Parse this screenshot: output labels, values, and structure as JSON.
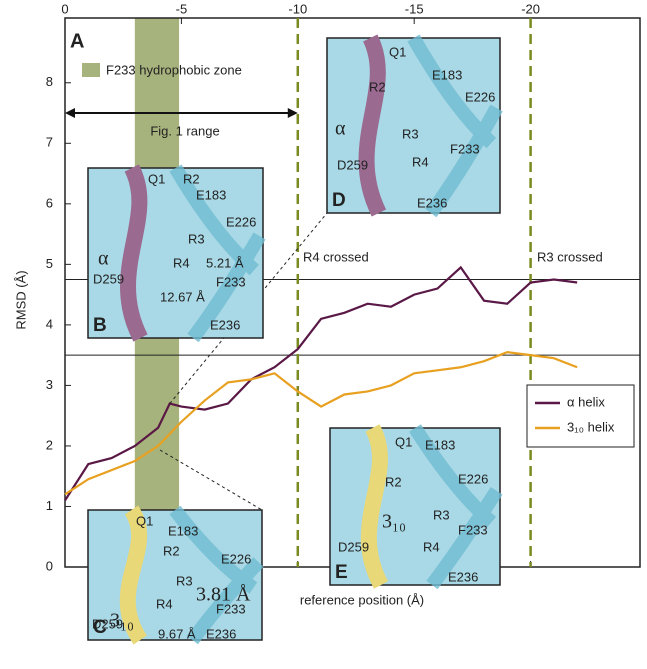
{
  "chart_data": {
    "type": "line",
    "panel_label": "A",
    "x_label": "reference position (Å)",
    "y_label": "RMSD (Å)",
    "x": [
      0,
      -1,
      -2,
      -3,
      -4,
      -4.5,
      -5,
      -6,
      -7,
      -8,
      -9,
      -10,
      -11,
      -12,
      -13,
      -14,
      -15,
      -16,
      -17,
      -18,
      -19,
      -20,
      -21,
      -22
    ],
    "series": [
      {
        "name": "α helix",
        "color": "#5a1846",
        "values": [
          1.1,
          1.7,
          1.8,
          2.0,
          2.3,
          2.7,
          2.65,
          2.6,
          2.7,
          3.1,
          3.3,
          3.6,
          4.1,
          4.2,
          4.35,
          4.3,
          4.5,
          4.6,
          4.95,
          4.4,
          4.35,
          4.7,
          4.75,
          4.7
        ]
      },
      {
        "name": "3₁₀ helix",
        "color": "#e8a020",
        "values": [
          1.2,
          1.45,
          1.6,
          1.75,
          2.0,
          2.2,
          2.4,
          2.75,
          3.05,
          3.1,
          3.2,
          2.9,
          2.65,
          2.85,
          2.9,
          3.0,
          3.2,
          3.25,
          3.3,
          3.4,
          3.55,
          3.5,
          3.45,
          3.3
        ]
      }
    ],
    "xlim": [
      0,
      -24.7
    ],
    "ylim": [
      0,
      9.07
    ],
    "xticks": [
      0,
      -5,
      -10,
      -15,
      -20
    ],
    "yticks": [
      0,
      1,
      2,
      3,
      4,
      5,
      6,
      7,
      8
    ],
    "hlines": [
      4.75,
      3.5
    ],
    "vlines": [
      -10,
      -20
    ],
    "zone": {
      "label": "F233 hydrophobic zone",
      "range": [
        -3,
        -4.9
      ],
      "color": "#8a9a50"
    },
    "range_arrow": {
      "label": "Fig. 1 range",
      "range": [
        0,
        -10
      ],
      "y": 7.5
    },
    "annotations": [
      "R4 crossed",
      "R3 crossed"
    ],
    "legend": "lower right",
    "insets": [
      {
        "panel": "B",
        "labels": [
          "Q1",
          "R2",
          "E183",
          "E226",
          "R3",
          "α",
          "R4",
          "5.21 Å",
          "D259",
          "12.67 Å",
          "F233",
          "E236"
        ]
      },
      {
        "panel": "D",
        "labels": [
          "Q1",
          "E183",
          "R2",
          "E226",
          "R3",
          "α",
          "D259",
          "R4",
          "F233",
          "E236"
        ]
      },
      {
        "panel": "C",
        "labels": [
          "Q1",
          "E183",
          "R2",
          "E226",
          "3₁₀",
          "R3",
          "3.81 Å",
          "R4",
          "F233",
          "D259",
          "9.67 Å",
          "E236"
        ]
      },
      {
        "panel": "E",
        "labels": [
          "Q1",
          "E183",
          "R2",
          "E226",
          "3₁₀",
          "R3",
          "F233",
          "D259",
          "R4",
          "E236"
        ]
      }
    ]
  }
}
